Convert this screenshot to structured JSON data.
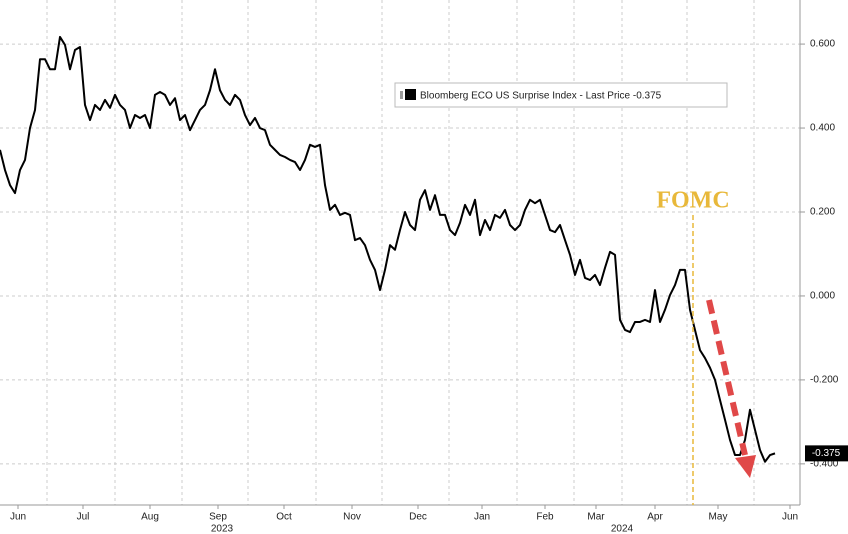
{
  "chart_data": {
    "type": "line",
    "x": [
      0,
      1,
      2,
      3,
      4,
      5,
      6,
      7,
      8,
      9,
      10,
      11,
      12,
      13,
      14,
      15,
      16,
      17,
      18,
      19,
      20,
      21,
      22,
      23,
      24,
      25,
      26,
      27,
      28,
      29,
      30,
      31,
      32,
      33,
      34,
      35,
      36,
      37,
      38,
      39,
      40,
      41,
      42,
      43,
      44,
      45,
      46,
      47,
      48,
      49,
      50,
      51,
      52,
      53,
      54,
      55,
      56,
      57,
      58,
      59,
      60,
      61,
      62,
      63,
      64,
      65,
      66,
      67,
      68,
      69,
      70,
      71,
      72,
      73,
      74,
      75,
      76,
      77,
      78,
      79,
      80,
      81,
      82,
      83,
      84,
      85,
      86,
      87,
      88,
      89,
      90,
      91,
      92,
      93,
      94,
      95,
      96,
      97,
      98,
      99,
      100,
      101,
      102,
      103,
      104,
      105,
      106,
      107,
      108,
      109,
      110,
      111,
      112,
      113,
      114,
      115,
      116,
      117,
      118,
      119,
      120,
      121,
      122,
      123,
      124,
      125,
      126,
      127,
      128,
      129,
      130,
      131,
      132,
      133,
      134,
      135,
      136,
      137,
      138,
      139,
      140,
      141,
      142,
      143,
      144,
      145,
      146,
      147,
      148,
      149,
      150,
      151,
      152,
      153,
      154,
      155
    ],
    "series": [
      {
        "name": "Bloomberg ECO US Surprise Index - Last Price -0.375",
        "color": "#000000",
        "values": [
          0.348,
          0.3,
          0.264,
          0.245,
          0.3,
          0.324,
          0.4,
          0.443,
          0.564,
          0.564,
          0.54,
          0.54,
          0.617,
          0.598,
          0.54,
          0.586,
          0.593,
          0.455,
          0.419,
          0.455,
          0.443,
          0.467,
          0.448,
          0.479,
          0.455,
          0.443,
          0.4,
          0.431,
          0.424,
          0.431,
          0.4,
          0.479,
          0.486,
          0.479,
          0.455,
          0.471,
          0.419,
          0.431,
          0.395,
          0.419,
          0.443,
          0.455,
          0.49,
          0.54,
          0.49,
          0.467,
          0.455,
          0.479,
          0.467,
          0.431,
          0.407,
          0.424,
          0.4,
          0.395,
          0.36,
          0.348,
          0.336,
          0.331,
          0.324,
          0.319,
          0.3,
          0.324,
          0.36,
          0.355,
          0.36,
          0.264,
          0.205,
          0.217,
          0.193,
          0.198,
          0.193,
          0.133,
          0.138,
          0.121,
          0.086,
          0.062,
          0.014,
          0.062,
          0.121,
          0.11,
          0.157,
          0.2,
          0.169,
          0.157,
          0.229,
          0.252,
          0.205,
          0.24,
          0.193,
          0.193,
          0.157,
          0.145,
          0.174,
          0.217,
          0.193,
          0.229,
          0.145,
          0.181,
          0.157,
          0.193,
          0.186,
          0.205,
          0.169,
          0.157,
          0.169,
          0.205,
          0.229,
          0.221,
          0.229,
          0.193,
          0.157,
          0.152,
          0.169,
          0.133,
          0.098,
          0.05,
          0.086,
          0.043,
          0.038,
          0.05,
          0.026,
          0.067,
          0.105,
          0.098,
          -0.057,
          -0.081,
          -0.086,
          -0.062,
          -0.062,
          -0.057,
          -0.062,
          0.014,
          -0.062,
          -0.033,
          0.002,
          0.026,
          0.062,
          0.062,
          -0.033,
          -0.081,
          -0.129,
          -0.148,
          -0.171,
          -0.2,
          -0.248,
          -0.295,
          -0.343,
          -0.379,
          -0.379,
          -0.343,
          -0.271,
          -0.319,
          -0.367,
          -0.395,
          -0.379,
          -0.375
        ]
      }
    ],
    "xlim": [
      0,
      160
    ],
    "xticks": [
      {
        "value": 3.6,
        "label": "Jun"
      },
      {
        "value": 16.6,
        "label": "Jul"
      },
      {
        "value": 30,
        "label": "Aug"
      },
      {
        "value": 43.6,
        "label": "Sep"
      },
      {
        "value": 56.8,
        "label": "Oct"
      },
      {
        "value": 70.4,
        "label": "Nov"
      },
      {
        "value": 83.6,
        "label": "Dec"
      },
      {
        "value": 96.4,
        "label": "Jan"
      },
      {
        "value": 109,
        "label": "Feb"
      },
      {
        "value": 119.2,
        "label": "Mar"
      },
      {
        "value": 131,
        "label": "Apr"
      },
      {
        "value": 143.6,
        "label": "May"
      },
      {
        "value": 158,
        "label": "Jun"
      }
    ],
    "year_labels": [
      {
        "value": 44.4,
        "label": "2023"
      },
      {
        "value": 124.4,
        "label": "2024"
      }
    ],
    "xgrid": [
      9.4,
      23,
      36.4,
      49.6,
      63.2,
      76.4,
      89.8,
      103.4,
      114.8,
      124.4,
      137.4,
      150.8
    ],
    "ylim": [
      -0.498,
      0.705
    ],
    "yticks": [
      {
        "value": 0.6,
        "label": "0.600"
      },
      {
        "value": 0.4,
        "label": "0.400"
      },
      {
        "value": 0.2,
        "label": "0.200"
      },
      {
        "value": 0,
        "label": "0.000"
      },
      {
        "value": -0.2,
        "label": "-0.200"
      },
      {
        "value": -0.4,
        "label": "-0.400"
      }
    ],
    "grid": true,
    "annotation": {
      "text": "FOMC",
      "x": 138.6,
      "color": "#e8b83a"
    }
  }
}
